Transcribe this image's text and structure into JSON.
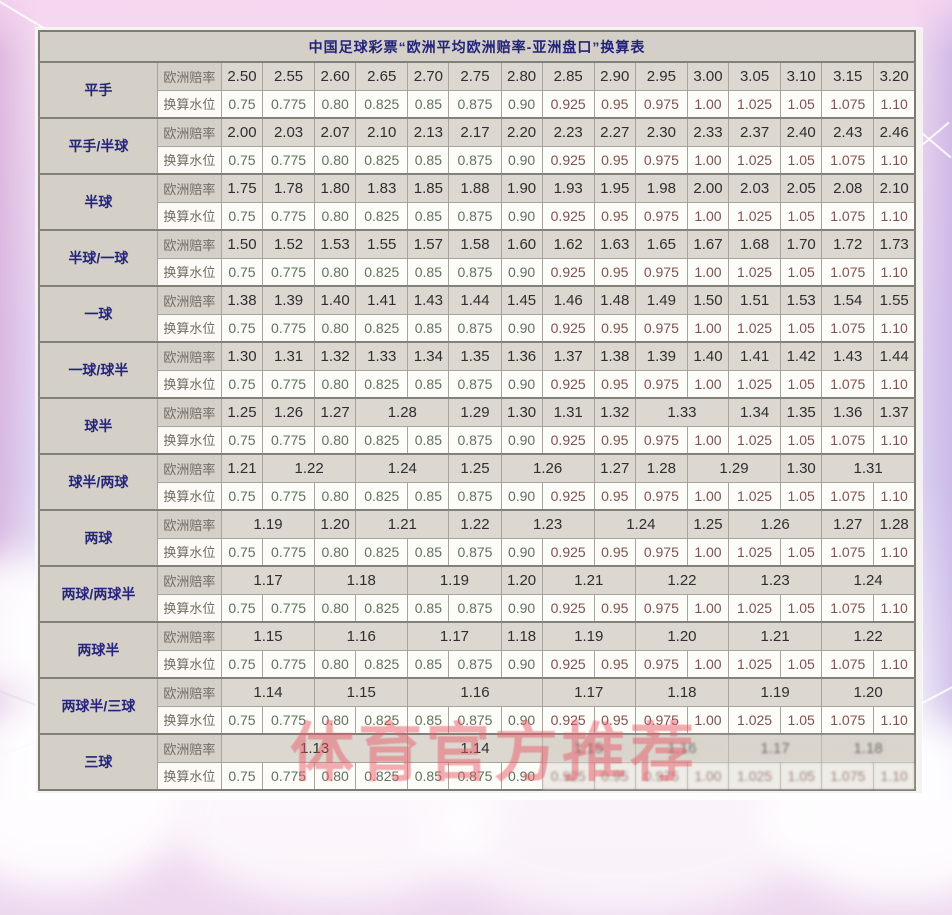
{
  "title": "中国足球彩票“欧洲平均欧洲赔率-亚洲盘口”换算表",
  "row_labels": {
    "odds": "欧洲赔率",
    "water": "换算水位"
  },
  "water_levels": [
    "0.75",
    "0.775",
    "0.80",
    "0.825",
    "0.85",
    "0.875",
    "0.90",
    "0.925",
    "0.95",
    "0.975",
    "1.00",
    "1.025",
    "1.05",
    "1.075",
    "1.10"
  ],
  "groups": [
    {
      "name": "平手",
      "odds": [
        {
          "v": "2.50",
          "span": 1
        },
        {
          "v": "2.55",
          "span": 1
        },
        {
          "v": "2.60",
          "span": 1
        },
        {
          "v": "2.65",
          "span": 1
        },
        {
          "v": "2.70",
          "span": 1
        },
        {
          "v": "2.75",
          "span": 1
        },
        {
          "v": "2.80",
          "span": 1
        },
        {
          "v": "2.85",
          "span": 1
        },
        {
          "v": "2.90",
          "span": 1
        },
        {
          "v": "2.95",
          "span": 1
        },
        {
          "v": "3.00",
          "span": 1
        },
        {
          "v": "3.05",
          "span": 1
        },
        {
          "v": "3.10",
          "span": 1
        },
        {
          "v": "3.15",
          "span": 1
        },
        {
          "v": "3.20",
          "span": 1
        }
      ]
    },
    {
      "name": "平手/半球",
      "odds": [
        {
          "v": "2.00",
          "span": 1
        },
        {
          "v": "2.03",
          "span": 1
        },
        {
          "v": "2.07",
          "span": 1
        },
        {
          "v": "2.10",
          "span": 1
        },
        {
          "v": "2.13",
          "span": 1
        },
        {
          "v": "2.17",
          "span": 1
        },
        {
          "v": "2.20",
          "span": 1
        },
        {
          "v": "2.23",
          "span": 1
        },
        {
          "v": "2.27",
          "span": 1
        },
        {
          "v": "2.30",
          "span": 1
        },
        {
          "v": "2.33",
          "span": 1
        },
        {
          "v": "2.37",
          "span": 1
        },
        {
          "v": "2.40",
          "span": 1
        },
        {
          "v": "2.43",
          "span": 1
        },
        {
          "v": "2.46",
          "span": 1
        }
      ]
    },
    {
      "name": "半球",
      "odds": [
        {
          "v": "1.75",
          "span": 1
        },
        {
          "v": "1.78",
          "span": 1
        },
        {
          "v": "1.80",
          "span": 1
        },
        {
          "v": "1.83",
          "span": 1
        },
        {
          "v": "1.85",
          "span": 1
        },
        {
          "v": "1.88",
          "span": 1
        },
        {
          "v": "1.90",
          "span": 1
        },
        {
          "v": "1.93",
          "span": 1
        },
        {
          "v": "1.95",
          "span": 1
        },
        {
          "v": "1.98",
          "span": 1
        },
        {
          "v": "2.00",
          "span": 1
        },
        {
          "v": "2.03",
          "span": 1
        },
        {
          "v": "2.05",
          "span": 1
        },
        {
          "v": "2.08",
          "span": 1
        },
        {
          "v": "2.10",
          "span": 1
        }
      ]
    },
    {
      "name": "半球/一球",
      "odds": [
        {
          "v": "1.50",
          "span": 1
        },
        {
          "v": "1.52",
          "span": 1
        },
        {
          "v": "1.53",
          "span": 1
        },
        {
          "v": "1.55",
          "span": 1
        },
        {
          "v": "1.57",
          "span": 1
        },
        {
          "v": "1.58",
          "span": 1
        },
        {
          "v": "1.60",
          "span": 1
        },
        {
          "v": "1.62",
          "span": 1
        },
        {
          "v": "1.63",
          "span": 1
        },
        {
          "v": "1.65",
          "span": 1
        },
        {
          "v": "1.67",
          "span": 1
        },
        {
          "v": "1.68",
          "span": 1
        },
        {
          "v": "1.70",
          "span": 1
        },
        {
          "v": "1.72",
          "span": 1
        },
        {
          "v": "1.73",
          "span": 1
        }
      ]
    },
    {
      "name": "一球",
      "odds": [
        {
          "v": "1.38",
          "span": 1
        },
        {
          "v": "1.39",
          "span": 1
        },
        {
          "v": "1.40",
          "span": 1
        },
        {
          "v": "1.41",
          "span": 1
        },
        {
          "v": "1.43",
          "span": 1
        },
        {
          "v": "1.44",
          "span": 1
        },
        {
          "v": "1.45",
          "span": 1
        },
        {
          "v": "1.46",
          "span": 1
        },
        {
          "v": "1.48",
          "span": 1
        },
        {
          "v": "1.49",
          "span": 1
        },
        {
          "v": "1.50",
          "span": 1
        },
        {
          "v": "1.51",
          "span": 1
        },
        {
          "v": "1.53",
          "span": 1
        },
        {
          "v": "1.54",
          "span": 1
        },
        {
          "v": "1.55",
          "span": 1
        }
      ]
    },
    {
      "name": "一球/球半",
      "odds": [
        {
          "v": "1.30",
          "span": 1
        },
        {
          "v": "1.31",
          "span": 1
        },
        {
          "v": "1.32",
          "span": 1
        },
        {
          "v": "1.33",
          "span": 1
        },
        {
          "v": "1.34",
          "span": 1
        },
        {
          "v": "1.35",
          "span": 1
        },
        {
          "v": "1.36",
          "span": 1
        },
        {
          "v": "1.37",
          "span": 1
        },
        {
          "v": "1.38",
          "span": 1
        },
        {
          "v": "1.39",
          "span": 1
        },
        {
          "v": "1.40",
          "span": 1
        },
        {
          "v": "1.41",
          "span": 1
        },
        {
          "v": "1.42",
          "span": 1
        },
        {
          "v": "1.43",
          "span": 1
        },
        {
          "v": "1.44",
          "span": 1
        }
      ]
    },
    {
      "name": "球半",
      "odds": [
        {
          "v": "1.25",
          "span": 1
        },
        {
          "v": "1.26",
          "span": 1
        },
        {
          "v": "1.27",
          "span": 1
        },
        {
          "v": "1.28",
          "span": 2
        },
        {
          "v": "1.29",
          "span": 1
        },
        {
          "v": "1.30",
          "span": 1
        },
        {
          "v": "1.31",
          "span": 1
        },
        {
          "v": "1.32",
          "span": 1
        },
        {
          "v": "1.33",
          "span": 2
        },
        {
          "v": "1.34",
          "span": 1
        },
        {
          "v": "1.35",
          "span": 1
        },
        {
          "v": "1.36",
          "span": 1
        },
        {
          "v": "1.37",
          "span": 1
        }
      ]
    },
    {
      "name": "球半/两球",
      "odds": [
        {
          "v": "1.21",
          "span": 1
        },
        {
          "v": "1.22",
          "span": 2
        },
        {
          "v": "1.24",
          "span": 2
        },
        {
          "v": "1.25",
          "span": 1
        },
        {
          "v": "1.26",
          "span": 2
        },
        {
          "v": "1.27",
          "span": 1
        },
        {
          "v": "1.28",
          "span": 1
        },
        {
          "v": "1.29",
          "span": 2
        },
        {
          "v": "1.30",
          "span": 1
        },
        {
          "v": "1.31",
          "span": 2
        }
      ]
    },
    {
      "name": "两球",
      "odds": [
        {
          "v": "1.19",
          "span": 2
        },
        {
          "v": "1.20",
          "span": 1
        },
        {
          "v": "1.21",
          "span": 2
        },
        {
          "v": "1.22",
          "span": 1
        },
        {
          "v": "1.23",
          "span": 2
        },
        {
          "v": "1.24",
          "span": 2
        },
        {
          "v": "1.25",
          "span": 1
        },
        {
          "v": "1.26",
          "span": 2
        },
        {
          "v": "1.27",
          "span": 1
        },
        {
          "v": "1.28",
          "span": 1
        }
      ]
    },
    {
      "name": "两球/两球半",
      "odds": [
        {
          "v": "1.17",
          "span": 2
        },
        {
          "v": "1.18",
          "span": 2
        },
        {
          "v": "1.19",
          "span": 2
        },
        {
          "v": "1.20",
          "span": 1
        },
        {
          "v": "1.21",
          "span": 2
        },
        {
          "v": "1.22",
          "span": 2
        },
        {
          "v": "1.23",
          "span": 2
        },
        {
          "v": "1.24",
          "span": 2
        }
      ]
    },
    {
      "name": "两球半",
      "odds": [
        {
          "v": "1.15",
          "span": 2
        },
        {
          "v": "1.16",
          "span": 2
        },
        {
          "v": "1.17",
          "span": 2
        },
        {
          "v": "1.18",
          "span": 1
        },
        {
          "v": "1.19",
          "span": 2
        },
        {
          "v": "1.20",
          "span": 2
        },
        {
          "v": "1.21",
          "span": 2
        },
        {
          "v": "1.22",
          "span": 2
        }
      ]
    },
    {
      "name": "两球半/三球",
      "odds": [
        {
          "v": "1.14",
          "span": 2
        },
        {
          "v": "1.15",
          "span": 2
        },
        {
          "v": "1.16",
          "span": 3
        },
        {
          "v": "1.17",
          "span": 2
        },
        {
          "v": "1.18",
          "span": 2
        },
        {
          "v": "1.19",
          "span": 2
        },
        {
          "v": "1.20",
          "span": 2
        }
      ]
    },
    {
      "name": "三球",
      "odds": [
        {
          "v": "1.13",
          "span": 4
        },
        {
          "v": "1.14",
          "span": 3
        },
        {
          "v": "1.15",
          "span": 2
        },
        {
          "v": "1.16",
          "span": 2
        },
        {
          "v": "1.17",
          "span": 2
        },
        {
          "v": "1.18",
          "span": 2
        }
      ]
    }
  ],
  "watermark": "体育官方推荐",
  "colors": {
    "label_navy": "#24247a",
    "odds_bg": "#dcd8d0",
    "water_bg": "#fcfcf8",
    "water_low": "#62705f",
    "water_high": "#7e5352",
    "watermark_red": "#e85c68"
  }
}
